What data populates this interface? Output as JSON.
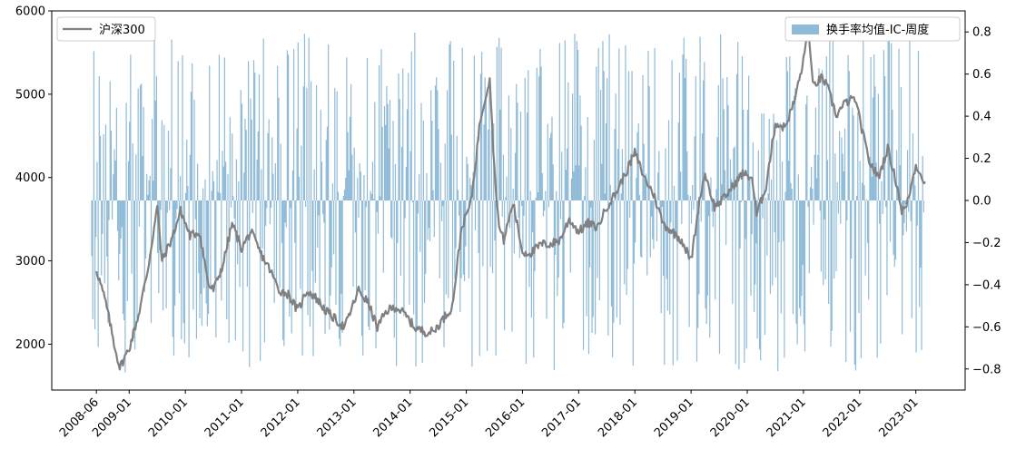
{
  "chart_data": {
    "type": "bar+line",
    "x_tick_labels": [
      "2008-06",
      "2009-01",
      "2010-01",
      "2011-01",
      "2012-01",
      "2013-01",
      "2014-01",
      "2015-01",
      "2016-01",
      "2017-01",
      "2018-01",
      "2019-01",
      "2020-01",
      "2021-01",
      "2022-01",
      "2023-01"
    ],
    "x_range": [
      "2008-05",
      "2023-03"
    ],
    "left_axis": {
      "ticks": [
        2000,
        3000,
        4000,
        5000,
        6000
      ],
      "range": [
        1450,
        6000
      ]
    },
    "right_axis": {
      "ticks": [
        -0.8,
        -0.6,
        -0.4,
        -0.2,
        0.0,
        0.2,
        0.4,
        0.6,
        0.8
      ],
      "range": [
        -0.9,
        0.9
      ]
    },
    "series": [
      {
        "name": "沪深300",
        "type": "line",
        "axis": "left",
        "color": "#808080",
        "points": [
          [
            "2008-06",
            2900
          ],
          [
            "2008-08",
            2500
          ],
          [
            "2008-10",
            1950
          ],
          [
            "2008-11",
            1720
          ],
          [
            "2009-01",
            1950
          ],
          [
            "2009-03",
            2350
          ],
          [
            "2009-05",
            2900
          ],
          [
            "2009-07",
            3650
          ],
          [
            "2009-08",
            3000
          ],
          [
            "2009-10",
            3250
          ],
          [
            "2009-12",
            3600
          ],
          [
            "2010-02",
            3300
          ],
          [
            "2010-04",
            3350
          ],
          [
            "2010-06",
            2700
          ],
          [
            "2010-07",
            2650
          ],
          [
            "2010-09",
            2950
          ],
          [
            "2010-11",
            3450
          ],
          [
            "2011-01",
            3150
          ],
          [
            "2011-03",
            3350
          ],
          [
            "2011-05",
            3100
          ],
          [
            "2011-07",
            2900
          ],
          [
            "2011-09",
            2650
          ],
          [
            "2011-11",
            2600
          ],
          [
            "2012-01",
            2400
          ],
          [
            "2012-03",
            2650
          ],
          [
            "2012-05",
            2550
          ],
          [
            "2012-07",
            2400
          ],
          [
            "2012-09",
            2300
          ],
          [
            "2012-11",
            2200
          ],
          [
            "2013-02",
            2650
          ],
          [
            "2013-04",
            2500
          ],
          [
            "2013-06",
            2200
          ],
          [
            "2013-08",
            2400
          ],
          [
            "2013-10",
            2450
          ],
          [
            "2013-12",
            2350
          ],
          [
            "2014-02",
            2200
          ],
          [
            "2014-04",
            2150
          ],
          [
            "2014-06",
            2150
          ],
          [
            "2014-08",
            2300
          ],
          [
            "2014-10",
            2450
          ],
          [
            "2014-12",
            3400
          ],
          [
            "2015-02",
            3700
          ],
          [
            "2015-04",
            4700
          ],
          [
            "2015-06",
            5200
          ],
          [
            "2015-07",
            4100
          ],
          [
            "2015-08",
            3400
          ],
          [
            "2015-09",
            3250
          ],
          [
            "2015-11",
            3700
          ],
          [
            "2016-01",
            3100
          ],
          [
            "2016-03",
            3100
          ],
          [
            "2016-05",
            3200
          ],
          [
            "2016-07",
            3200
          ],
          [
            "2016-09",
            3250
          ],
          [
            "2016-11",
            3500
          ],
          [
            "2017-01",
            3350
          ],
          [
            "2017-03",
            3450
          ],
          [
            "2017-05",
            3400
          ],
          [
            "2017-07",
            3650
          ],
          [
            "2017-09",
            3820
          ],
          [
            "2017-11",
            4050
          ],
          [
            "2018-01",
            4300
          ],
          [
            "2018-03",
            4000
          ],
          [
            "2018-05",
            3800
          ],
          [
            "2018-07",
            3450
          ],
          [
            "2018-09",
            3350
          ],
          [
            "2018-11",
            3250
          ],
          [
            "2019-01",
            3000
          ],
          [
            "2019-03",
            3800
          ],
          [
            "2019-04",
            4050
          ],
          [
            "2019-06",
            3650
          ],
          [
            "2019-08",
            3750
          ],
          [
            "2019-10",
            3900
          ],
          [
            "2019-12",
            4050
          ],
          [
            "2020-02",
            4000
          ],
          [
            "2020-03",
            3550
          ],
          [
            "2020-05",
            3900
          ],
          [
            "2020-07",
            4650
          ],
          [
            "2020-09",
            4600
          ],
          [
            "2020-11",
            4900
          ],
          [
            "2021-01",
            5400
          ],
          [
            "2021-02",
            5800
          ],
          [
            "2021-03",
            5100
          ],
          [
            "2021-05",
            5200
          ],
          [
            "2021-06",
            5100
          ],
          [
            "2021-08",
            4750
          ],
          [
            "2021-10",
            4900
          ],
          [
            "2021-12",
            4950
          ],
          [
            "2022-01",
            4700
          ],
          [
            "2022-03",
            4200
          ],
          [
            "2022-05",
            4000
          ],
          [
            "2022-07",
            4350
          ],
          [
            "2022-09",
            3900
          ],
          [
            "2022-10",
            3600
          ],
          [
            "2022-11",
            3650
          ],
          [
            "2022-12",
            3900
          ],
          [
            "2023-01",
            4150
          ],
          [
            "2023-02",
            4050
          ],
          [
            "2023-03",
            3950
          ]
        ]
      },
      {
        "name": "换手率均值-IC-周度",
        "type": "bar",
        "axis": "right",
        "color": "#1f77b4",
        "note": "weekly IC values, about 770 weeks from 2008-06 to 2023-03, ranging roughly -0.85 to +0.8"
      }
    ],
    "legend_left": {
      "label": "沪深300",
      "placement": "upper-left"
    },
    "legend_right": {
      "label": "换手率均值-IC-周度",
      "placement": "upper-right"
    }
  }
}
